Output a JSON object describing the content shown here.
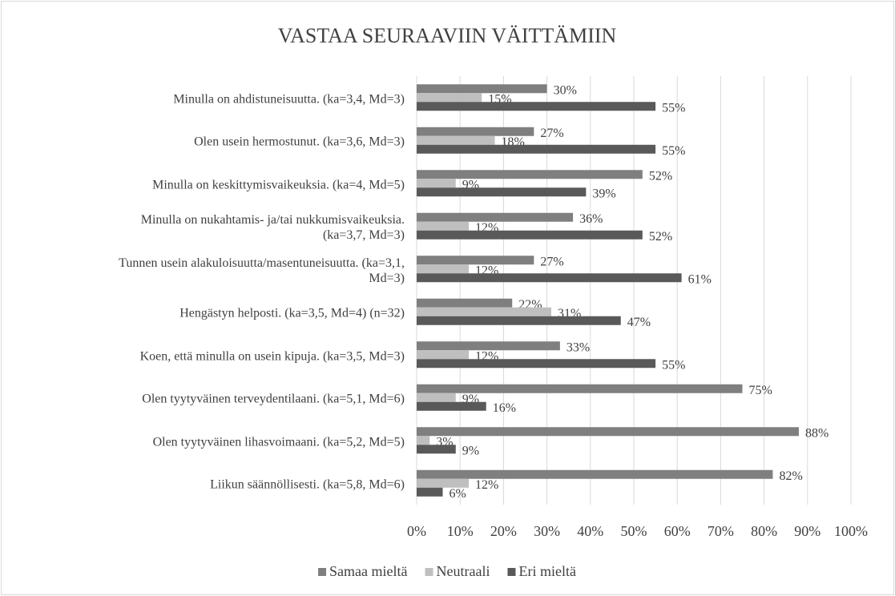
{
  "chart_data": {
    "type": "bar",
    "orientation": "horizontal",
    "title": "VASTAA SEURAAVIIN VÄITTÄMIIN",
    "categories": [
      "Minulla on ahdistuneisuutta. (ka=3,4, Md=3)",
      "Olen usein hermostunut. (ka=3,6, Md=3)",
      "Minulla on keskittymisvaikeuksia. (ka=4, Md=5)",
      "Minulla on nukahtamis- ja/tai nukkumisvaikeuksia.\n(ka=3,7, Md=3)",
      "Tunnen usein alakuloisuutta/masentuneisuutta. (ka=3,1,\nMd=3)",
      "Hengästyn helposti. (ka=3,5, Md=4) (n=32)",
      "Koen, että minulla on usein kipuja. (ka=3,5, Md=3)",
      "Olen tyytyväinen terveydentilaani. (ka=5,1, Md=6)",
      "Olen tyytyväinen lihasvoimaani. (ka=5,2, Md=5)",
      "Liikun säännöllisesti. (ka=5,8, Md=6)"
    ],
    "series": [
      {
        "name": "Samaa mieltä",
        "color": "#7f7f7f",
        "values": [
          30,
          27,
          52,
          36,
          27,
          22,
          33,
          75,
          88,
          82
        ],
        "value_labels": [
          "30%",
          "27%",
          "52%",
          "36%",
          "27%",
          "22%",
          "33%",
          "75%",
          "88%",
          "82%"
        ]
      },
      {
        "name": "Neutraali",
        "color": "#bfbfbf",
        "values": [
          15,
          18,
          9,
          12,
          12,
          31,
          12,
          9,
          3,
          12
        ],
        "value_labels": [
          "15%",
          "18%",
          "9%",
          "12%",
          "12%",
          "31%",
          "12%",
          "9%",
          "3%",
          "12%"
        ]
      },
      {
        "name": "Eri mieltä",
        "color": "#595959",
        "values": [
          55,
          55,
          39,
          52,
          61,
          47,
          55,
          16,
          9,
          6
        ],
        "value_labels": [
          "55%",
          "55%",
          "39%",
          "52%",
          "61%",
          "47%",
          "55%",
          "16%",
          "9%",
          "6%"
        ]
      }
    ],
    "xlim": [
      0,
      100
    ],
    "xticks": [
      {
        "value": 0,
        "label": "0%"
      },
      {
        "value": 10,
        "label": "10%"
      },
      {
        "value": 20,
        "label": "20%"
      },
      {
        "value": 30,
        "label": "30%"
      },
      {
        "value": 40,
        "label": "40%"
      },
      {
        "value": 50,
        "label": "50%"
      },
      {
        "value": 60,
        "label": "60%"
      },
      {
        "value": 70,
        "label": "70%"
      },
      {
        "value": 80,
        "label": "80%"
      },
      {
        "value": 90,
        "label": "90%"
      },
      {
        "value": 100,
        "label": "100%"
      }
    ],
    "grid": true,
    "legend": "bottom"
  }
}
